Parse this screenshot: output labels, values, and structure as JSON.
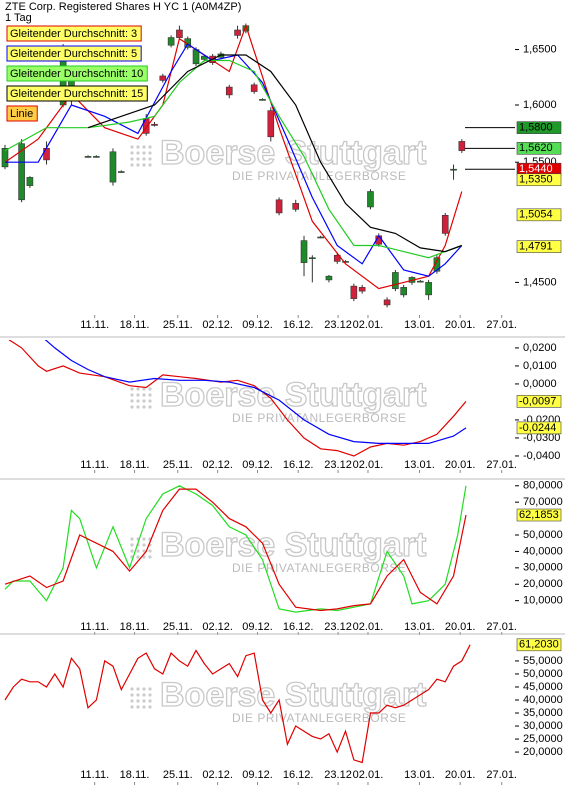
{
  "header": {
    "title": "ZTE Corp. Registered Shares H YC 1 (A0M4ZP)",
    "interval": "1 Tag"
  },
  "watermark": {
    "brand": "Boerse Stuttgart",
    "tagline": "DIE PRIVATANLEGERBÖRSE"
  },
  "chart_data": [
    {
      "type": "candlestick",
      "log_scale": true,
      "xlim": [
        -0.6,
        61.4
      ],
      "xticks": [
        {
          "value": 10.8,
          "label": "11.11."
        },
        {
          "value": 15.6,
          "label": "18.11."
        },
        {
          "value": 20.8,
          "label": "25.11."
        },
        {
          "value": 25.6,
          "label": "02.12."
        },
        {
          "value": 30.4,
          "label": "09.12."
        },
        {
          "value": 35.3,
          "label": "16.12."
        },
        {
          "value": 40.1,
          "label": "23.12"
        },
        {
          "value": 43.7,
          "label": "02.01."
        },
        {
          "value": 49.9,
          "label": "13.01."
        },
        {
          "value": 54.8,
          "label": "20.01."
        },
        {
          "value": 59.8,
          "label": "27.01."
        }
      ],
      "ylim": [
        1.424,
        1.696
      ],
      "yticks": [
        {
          "value": 1.65,
          "label": "1,6500"
        },
        {
          "value": 1.6,
          "label": "1,6000"
        },
        {
          "value": 1.55,
          "label": "1,5500"
        },
        {
          "value": 1.45,
          "label": "1,4500"
        }
      ],
      "up_color": "#1f8a2a",
      "down_color": "#d0203a",
      "candles": {
        "x": [
          0,
          2,
          3,
          5,
          7,
          8,
          10,
          11,
          13,
          14,
          17,
          18,
          19,
          20,
          21,
          22,
          23,
          24,
          25,
          26,
          27,
          28,
          29,
          30,
          31,
          32,
          33,
          35,
          36,
          37,
          38,
          39,
          40,
          41,
          42,
          43,
          44,
          45,
          46,
          47,
          48,
          49,
          50,
          51,
          52,
          53,
          54,
          55
        ],
        "open": [
          1.546,
          1.518,
          1.53,
          1.562,
          1.6,
          1.605,
          1.555,
          1.555,
          1.533,
          1.542,
          1.588,
          1.583,
          1.626,
          1.654,
          1.668,
          1.652,
          1.637,
          1.641,
          1.644,
          1.643,
          1.616,
          1.668,
          1.667,
          1.618,
          1.605,
          1.595,
          1.518,
          1.515,
          1.466,
          1.47,
          1.487,
          1.452,
          1.472,
          1.467,
          1.447,
          1.446,
          1.512,
          1.488,
          1.436,
          1.445,
          1.44,
          1.45,
          1.451,
          1.44,
          1.459,
          1.505,
          1.544,
          1.568
        ],
        "high": [
          1.565,
          1.57,
          1.538,
          1.568,
          1.655,
          1.635,
          1.556,
          1.556,
          1.562,
          1.543,
          1.592,
          1.585,
          1.628,
          1.663,
          1.672,
          1.662,
          1.652,
          1.645,
          1.646,
          1.648,
          1.618,
          1.672,
          1.674,
          1.62,
          1.606,
          1.598,
          1.52,
          1.518,
          1.488,
          1.472,
          1.488,
          1.456,
          1.474,
          1.468,
          1.449,
          1.448,
          1.527,
          1.49,
          1.438,
          1.46,
          1.448,
          1.455,
          1.452,
          1.452,
          1.472,
          1.507,
          1.548,
          1.57
        ],
        "low": [
          1.544,
          1.516,
          1.528,
          1.548,
          1.598,
          1.6,
          1.554,
          1.554,
          1.53,
          1.541,
          1.573,
          1.581,
          1.62,
          1.652,
          1.66,
          1.65,
          1.635,
          1.639,
          1.636,
          1.641,
          1.606,
          1.66,
          1.665,
          1.61,
          1.604,
          1.568,
          1.505,
          1.508,
          1.455,
          1.45,
          1.486,
          1.45,
          1.465,
          1.466,
          1.435,
          1.441,
          1.51,
          1.479,
          1.43,
          1.443,
          1.438,
          1.448,
          1.45,
          1.436,
          1.457,
          1.488,
          1.535,
          1.558
        ],
        "close": [
          1.562,
          1.566,
          1.537,
          1.552,
          1.64,
          1.632,
          1.555,
          1.555,
          1.559,
          1.542,
          1.575,
          1.582,
          1.622,
          1.661,
          1.661,
          1.66,
          1.65,
          1.644,
          1.638,
          1.646,
          1.609,
          1.663,
          1.672,
          1.612,
          1.605,
          1.572,
          1.507,
          1.51,
          1.484,
          1.47,
          1.487,
          1.455,
          1.467,
          1.467,
          1.437,
          1.443,
          1.525,
          1.481,
          1.432,
          1.458,
          1.446,
          1.454,
          1.451,
          1.45,
          1.47,
          1.49,
          1.544,
          1.56
        ]
      },
      "series": [
        {
          "name": "Gleitender Durchschnitt: 3",
          "color": "#e00000",
          "legend_bg": "#ffff66",
          "x": [
            0,
            4,
            8,
            12,
            16,
            19,
            21,
            24,
            27,
            29,
            33,
            37,
            41,
            45,
            48,
            51,
            53,
            55
          ],
          "values": [
            1.55,
            1.57,
            1.61,
            1.58,
            1.57,
            1.6,
            1.66,
            1.645,
            1.63,
            1.672,
            1.58,
            1.5,
            1.465,
            1.445,
            1.45,
            1.455,
            1.48,
            1.525
          ]
        },
        {
          "name": "Gleitender Durchschnitt: 5",
          "color": "#0000ff",
          "legend_bg": "#ffff66",
          "x": [
            0,
            4,
            8,
            12,
            16,
            20,
            22,
            25,
            28,
            31,
            34,
            37,
            40,
            43,
            45,
            48,
            51,
            53,
            55
          ],
          "values": [
            1.55,
            1.55,
            1.6,
            1.59,
            1.575,
            1.63,
            1.655,
            1.64,
            1.645,
            1.62,
            1.57,
            1.52,
            1.48,
            1.465,
            1.488,
            1.46,
            1.455,
            1.465,
            1.48
          ]
        },
        {
          "name": "Gleitender Durchschnitt: 10",
          "color": "#22cc22",
          "legend_bg": "#99ff66",
          "x": [
            0,
            5,
            10,
            15,
            18,
            21,
            24,
            27,
            30,
            33,
            36,
            39,
            42,
            45,
            48,
            51,
            53,
            55
          ],
          "values": [
            1.56,
            1.58,
            1.58,
            1.585,
            1.59,
            1.62,
            1.64,
            1.64,
            1.63,
            1.59,
            1.555,
            1.51,
            1.48,
            1.48,
            1.475,
            1.47,
            1.475,
            1.48
          ]
        },
        {
          "name": "Gleitender Durchschnitt: 15",
          "color": "#000000",
          "legend_bg": "#ffff66",
          "x": [
            10,
            14,
            18,
            22,
            26,
            29,
            32,
            35,
            38,
            41,
            44,
            47,
            50,
            53,
            55
          ],
          "values": [
            1.58,
            1.59,
            1.6,
            1.63,
            1.645,
            1.645,
            1.63,
            1.6,
            1.55,
            1.515,
            1.495,
            1.49,
            1.478,
            1.475,
            1.48
          ]
        }
      ],
      "tool_label": {
        "text": "Linie",
        "bg": "#ffcc44",
        "border": "#e00000"
      },
      "price_labels": [
        {
          "value": 1.58,
          "label": "1,5800",
          "bg": "#1f9a2a",
          "fg": "#000000",
          "line": true
        },
        {
          "value": 1.562,
          "label": "1,5620",
          "bg": "#55dd55",
          "fg": "#000000",
          "line": true
        },
        {
          "value": 1.544,
          "label": "1,5440",
          "bg": "#e00000",
          "fg": "#ffffff",
          "line": true
        },
        {
          "value": 1.535,
          "label": "1,5350",
          "bg": "#ffff44",
          "fg": "#000000",
          "line": false
        },
        {
          "value": 1.5054,
          "label": "1,5054",
          "bg": "#ffff44",
          "fg": "#000000",
          "line": false
        },
        {
          "value": 1.4791,
          "label": "1,4791",
          "bg": "#ffff44",
          "fg": "#000000",
          "line": false
        }
      ]
    },
    {
      "type": "line",
      "ylim": [
        -0.0478,
        0.0244
      ],
      "yticks": [
        {
          "value": 0.02,
          "label": "0,0200"
        },
        {
          "value": 0.01,
          "label": "0,0100"
        },
        {
          "value": 0,
          "label": "0,0000"
        },
        {
          "value": -0.02,
          "label": "-0,0200"
        },
        {
          "value": -0.03,
          "label": "-0,0300"
        },
        {
          "value": -0.04,
          "label": "-0,0400"
        }
      ],
      "series": [
        {
          "color": "#e00000",
          "x": [
            0,
            2,
            4,
            5,
            7,
            9,
            12,
            15,
            17,
            19,
            21,
            23,
            26,
            28,
            30,
            32,
            34,
            36,
            38,
            40,
            42,
            44,
            46,
            48,
            50,
            52,
            54,
            55.5
          ],
          "values": [
            0.026,
            0.02,
            0.01,
            0.007,
            0.01,
            0.006,
            0.004,
            -0.001,
            -0.002,
            0.005,
            0.004,
            0.003,
            0.001,
            0.002,
            -0.001,
            -0.008,
            -0.02,
            -0.03,
            -0.036,
            -0.037,
            -0.04,
            -0.035,
            -0.033,
            -0.034,
            -0.032,
            -0.028,
            -0.018,
            -0.0097
          ]
        },
        {
          "color": "#0000ff",
          "x": [
            4,
            6,
            8,
            10,
            12,
            15,
            18,
            21,
            24,
            27,
            30,
            33,
            36,
            39,
            42,
            45,
            48,
            51,
            54,
            55.5
          ],
          "values": [
            0.028,
            0.02,
            0.013,
            0.008,
            0.004,
            0.001,
            0.003,
            0.002,
            0.002,
            0.001,
            -0.002,
            -0.009,
            -0.02,
            -0.028,
            -0.032,
            -0.033,
            -0.033,
            -0.033,
            -0.029,
            -0.0244
          ]
        }
      ],
      "price_labels": [
        {
          "value": -0.0097,
          "label": "-0,0097",
          "bg": "#ffff44",
          "fg": "#000000",
          "line": false
        },
        {
          "value": -0.0244,
          "label": "-0,0244",
          "bg": "#ffff44",
          "fg": "#000000",
          "line": false
        }
      ]
    },
    {
      "type": "line",
      "ylim": [
        -9.1,
        82.3
      ],
      "yticks": [
        {
          "value": 80,
          "label": "80,0000"
        },
        {
          "value": 70,
          "label": "70,0000"
        },
        {
          "value": 50,
          "label": "50,0000"
        },
        {
          "value": 40,
          "label": "40,0000"
        },
        {
          "value": 30,
          "label": "30,0000"
        },
        {
          "value": 20,
          "label": "20,0000"
        },
        {
          "value": 10,
          "label": "10,0000"
        }
      ],
      "series": [
        {
          "color": "#22dd22",
          "x": [
            0,
            1,
            3,
            5,
            7,
            8,
            9,
            11,
            13,
            15,
            17,
            19,
            21,
            23,
            25,
            27,
            29,
            31,
            33,
            35,
            38,
            40,
            42,
            44,
            46,
            48,
            49,
            51,
            53,
            54.5,
            55.5
          ],
          "values": [
            17,
            22,
            22,
            10,
            30,
            65,
            60,
            30,
            55,
            30,
            60,
            75,
            80,
            75,
            68,
            55,
            50,
            35,
            5,
            3,
            5,
            4,
            6,
            8,
            40,
            25,
            8,
            10,
            20,
            50,
            80
          ]
        },
        {
          "color": "#e00000",
          "x": [
            0,
            3,
            5,
            7,
            9,
            11,
            13,
            15,
            17,
            19,
            21,
            23,
            25,
            27,
            29,
            31,
            33,
            35,
            38,
            40,
            42,
            44,
            46,
            48,
            50,
            52,
            54,
            55.5
          ],
          "values": [
            20,
            25,
            18,
            22,
            50,
            45,
            40,
            28,
            40,
            65,
            78,
            78,
            70,
            60,
            55,
            45,
            20,
            6,
            4,
            5,
            7,
            8,
            25,
            35,
            15,
            8,
            25,
            62.1853
          ]
        }
      ],
      "price_labels": [
        {
          "value": 62.1853,
          "label": "62,1853",
          "bg": "#ffff44",
          "fg": "#000000",
          "line": false
        }
      ]
    },
    {
      "type": "line",
      "ylim": [
        8.5,
        64.2
      ],
      "yticks": [
        {
          "value": 55,
          "label": "55,0000"
        },
        {
          "value": 50,
          "label": "50,0000"
        },
        {
          "value": 45,
          "label": "45,0000"
        },
        {
          "value": 40,
          "label": "40,0000"
        },
        {
          "value": 35,
          "label": "35,0000"
        },
        {
          "value": 30,
          "label": "30,0000"
        },
        {
          "value": 25,
          "label": "25,0000"
        },
        {
          "value": 20,
          "label": "20,0000"
        }
      ],
      "series": [
        {
          "color": "#e00000",
          "x": [
            0,
            1,
            2,
            3,
            4,
            5,
            6,
            7,
            8,
            9,
            10,
            11,
            12,
            13,
            14,
            15,
            16,
            17,
            18,
            19,
            20,
            21,
            22,
            23,
            24,
            25,
            26,
            27,
            28,
            29,
            30,
            31,
            32,
            33,
            34,
            35,
            36,
            37,
            38,
            39,
            40,
            41,
            42,
            43,
            44,
            45,
            46,
            47,
            48,
            49,
            50,
            51,
            52,
            53,
            54,
            55,
            56
          ],
          "values": [
            40,
            45,
            48,
            47,
            47,
            45,
            50,
            45,
            56,
            52,
            37,
            40,
            55,
            53,
            44,
            50,
            56,
            58,
            52,
            50,
            58,
            55,
            53,
            59,
            54,
            50,
            52,
            54,
            49,
            57,
            58,
            40,
            35,
            40,
            23,
            30,
            28,
            26,
            25,
            27,
            20,
            28,
            17,
            16,
            35,
            35,
            38,
            37,
            38,
            40,
            42,
            44,
            48,
            47,
            53,
            55,
            61.203
          ]
        }
      ],
      "price_labels": [
        {
          "value": 61.203,
          "label": "61,2030",
          "bg": "#ffff44",
          "fg": "#000000",
          "line": false
        }
      ]
    }
  ]
}
